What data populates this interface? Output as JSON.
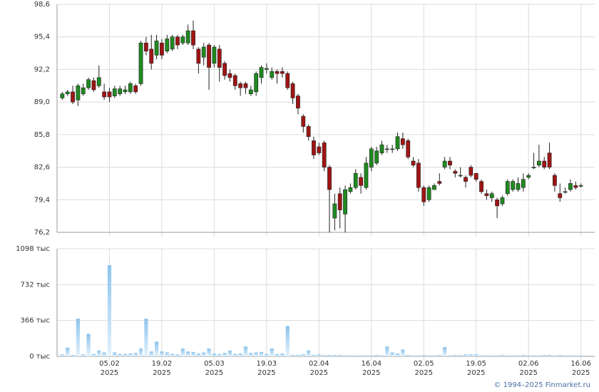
{
  "chart_data": {
    "type": "candlestick",
    "grid": true,
    "up_color": "#1f8a1f",
    "down_color": "#a01414",
    "ylim": [
      76.2,
      98.6
    ],
    "yticks": [
      {
        "value": 76.2,
        "label": "76,2"
      },
      {
        "value": 79.4,
        "label": "79,4"
      },
      {
        "value": 82.6,
        "label": "82,6"
      },
      {
        "value": 85.8,
        "label": "85,8"
      },
      {
        "value": 89.0,
        "label": "89,0"
      },
      {
        "value": 92.2,
        "label": "92,2"
      },
      {
        "value": 95.4,
        "label": "95,4"
      },
      {
        "value": 98.6,
        "label": "98,6"
      }
    ],
    "xlim": [
      -1,
      100
    ],
    "xticks": [
      {
        "value": 9,
        "label": "05.02\n2025"
      },
      {
        "value": 19,
        "label": "19.02\n2025"
      },
      {
        "value": 29,
        "label": "05.03\n2025"
      },
      {
        "value": 39,
        "label": "19.03\n2025"
      },
      {
        "value": 49,
        "label": "02.04\n2025"
      },
      {
        "value": 59,
        "label": "16.04\n2025"
      },
      {
        "value": 69,
        "label": "02.05\n2025"
      },
      {
        "value": 79,
        "label": "19.05\n2025"
      },
      {
        "value": 89,
        "label": "02.06\n2025"
      },
      {
        "value": 99,
        "label": "16.06\n2025"
      }
    ],
    "open": [
      89.4,
      89.8,
      90.0,
      89.2,
      89.8,
      90.4,
      91.1,
      90.6,
      90.0,
      90.0,
      89.6,
      89.8,
      90.0,
      90.0,
      90.6,
      90.8,
      94.8,
      94.2,
      93.6,
      94.8,
      94.0,
      94.2,
      95.4,
      94.8,
      94.8,
      96.0,
      94.2,
      93.4,
      94.6,
      92.8,
      94.2,
      92.8,
      91.8,
      91.6,
      90.8,
      90.8,
      89.8,
      90.0,
      91.4,
      92.2,
      91.4,
      92.0,
      92.0,
      91.8,
      90.8,
      89.6,
      87.6,
      86.6,
      85.2,
      84.6,
      85.0,
      82.6,
      77.6,
      80.0,
      78.0,
      80.2,
      80.6,
      81.6,
      80.6,
      82.6,
      83.0,
      84.0,
      84.4,
      84.4,
      84.4,
      85.4,
      85.2,
      83.2,
      83.0,
      80.6,
      79.4,
      80.4,
      81.2,
      82.6,
      83.2,
      82.2,
      81.8,
      81.6,
      82.6,
      82.0,
      81.2,
      80.0,
      79.6,
      79.4,
      79.0,
      80.0,
      80.4,
      80.4,
      80.6,
      81.6,
      82.6,
      82.8,
      83.2,
      84.0,
      81.8,
      80.0,
      80.2,
      80.4,
      80.8,
      80.8
    ],
    "high": [
      90.0,
      90.2,
      90.6,
      90.8,
      90.8,
      91.4,
      91.4,
      92.6,
      90.8,
      90.4,
      90.6,
      90.6,
      90.6,
      91.0,
      90.8,
      95.0,
      95.4,
      95.6,
      95.6,
      95.2,
      95.6,
      95.6,
      95.6,
      95.6,
      96.6,
      97.0,
      94.4,
      94.8,
      94.8,
      94.6,
      94.6,
      93.0,
      92.2,
      91.8,
      91.0,
      91.0,
      90.6,
      92.0,
      92.6,
      92.8,
      92.4,
      92.2,
      92.4,
      92.0,
      91.0,
      89.8,
      87.8,
      86.8,
      85.6,
      85.0,
      85.2,
      82.8,
      80.0,
      80.6,
      80.8,
      81.0,
      82.4,
      82.0,
      83.6,
      84.6,
      84.6,
      85.2,
      84.8,
      84.8,
      86.0,
      86.0,
      85.4,
      83.6,
      83.4,
      80.8,
      80.8,
      81.0,
      82.0,
      83.6,
      83.6,
      82.4,
      82.6,
      81.8,
      82.8,
      82.0,
      81.4,
      80.4,
      80.2,
      79.6,
      79.8,
      81.4,
      81.4,
      81.6,
      82.0,
      82.0,
      84.0,
      84.8,
      83.6,
      85.0,
      82.0,
      81.0,
      80.6,
      81.4,
      81.2,
      81.0
    ],
    "low": [
      89.2,
      89.6,
      88.8,
      88.6,
      89.6,
      90.2,
      90.0,
      90.4,
      89.2,
      89.0,
      89.4,
      89.6,
      89.8,
      89.8,
      89.8,
      90.6,
      93.6,
      92.2,
      93.2,
      93.2,
      93.8,
      94.0,
      94.2,
      94.6,
      94.6,
      94.2,
      91.8,
      92.6,
      90.2,
      92.4,
      91.0,
      91.2,
      91.0,
      90.2,
      89.6,
      89.8,
      89.6,
      89.6,
      90.8,
      91.8,
      91.2,
      90.8,
      91.4,
      90.2,
      88.8,
      87.8,
      86.0,
      85.2,
      83.4,
      83.8,
      82.2,
      76.2,
      76.4,
      76.6,
      76.2,
      80.0,
      80.4,
      80.0,
      80.4,
      82.2,
      82.8,
      83.8,
      84.0,
      84.0,
      84.2,
      84.4,
      83.4,
      82.6,
      80.2,
      78.8,
      79.2,
      80.4,
      80.8,
      82.4,
      82.4,
      81.6,
      81.6,
      80.6,
      81.6,
      81.2,
      80.0,
      79.4,
      79.2,
      77.6,
      78.8,
      79.8,
      80.2,
      80.2,
      80.2,
      81.4,
      82.4,
      82.6,
      82.4,
      82.4,
      80.2,
      79.2,
      80.0,
      80.2,
      80.4,
      80.6
    ],
    "close": [
      89.8,
      90.0,
      89.0,
      90.6,
      90.4,
      91.2,
      90.2,
      91.4,
      89.5,
      89.5,
      90.3,
      90.3,
      90.2,
      90.8,
      90.0,
      94.8,
      94.0,
      92.8,
      95.0,
      93.6,
      95.2,
      95.4,
      94.6,
      95.4,
      96.0,
      94.6,
      92.8,
      94.4,
      92.4,
      94.4,
      92.4,
      91.6,
      91.4,
      90.6,
      90.4,
      90.4,
      90.2,
      91.8,
      92.4,
      92.3,
      92.0,
      91.8,
      91.8,
      90.4,
      89.4,
      88.4,
      86.6,
      85.6,
      83.8,
      84.0,
      82.6,
      80.4,
      79.0,
      78.4,
      80.4,
      80.6,
      82.0,
      80.8,
      83.0,
      84.4,
      84.2,
      84.8,
      84.4,
      84.4,
      85.6,
      84.8,
      83.6,
      82.8,
      80.6,
      79.2,
      80.6,
      80.8,
      81.0,
      83.2,
      82.8,
      82.0,
      81.8,
      81.2,
      81.8,
      81.4,
      80.2,
      79.8,
      80.0,
      78.8,
      79.6,
      81.2,
      81.2,
      81.0,
      81.4,
      81.8,
      82.6,
      83.2,
      82.6,
      82.6,
      80.8,
      79.6,
      80.2,
      81.0,
      80.6,
      80.8
    ],
    "volume": {
      "color": "#8cc4ec",
      "ylim": [
        0,
        1098
      ],
      "yticks": [
        {
          "value": 0,
          "label": "0 тыс"
        },
        {
          "value": 366,
          "label": "366 тыс"
        },
        {
          "value": 732,
          "label": "732 тыс"
        },
        {
          "value": 1098,
          "label": "1098 тыс"
        }
      ],
      "values": [
        20,
        90,
        15,
        385,
        20,
        230,
        25,
        60,
        40,
        930,
        40,
        25,
        25,
        30,
        35,
        80,
        385,
        50,
        150,
        50,
        40,
        25,
        20,
        80,
        50,
        45,
        30,
        40,
        80,
        30,
        25,
        35,
        60,
        25,
        30,
        100,
        35,
        40,
        45,
        25,
        80,
        25,
        30,
        310,
        15,
        15,
        20,
        60,
        15,
        20,
        15,
        15,
        15,
        15,
        10,
        10,
        10,
        10,
        10,
        10,
        15,
        10,
        100,
        40,
        30,
        70,
        15,
        10,
        10,
        15,
        10,
        10,
        15,
        95,
        10,
        15,
        15,
        20,
        20,
        20,
        10,
        10,
        10,
        10,
        15,
        10,
        10,
        10,
        15,
        10,
        10,
        10,
        15,
        15,
        10,
        15,
        10,
        10,
        10,
        10
      ]
    },
    "copyright": "© 1994–2025 Finmarket.ru"
  }
}
